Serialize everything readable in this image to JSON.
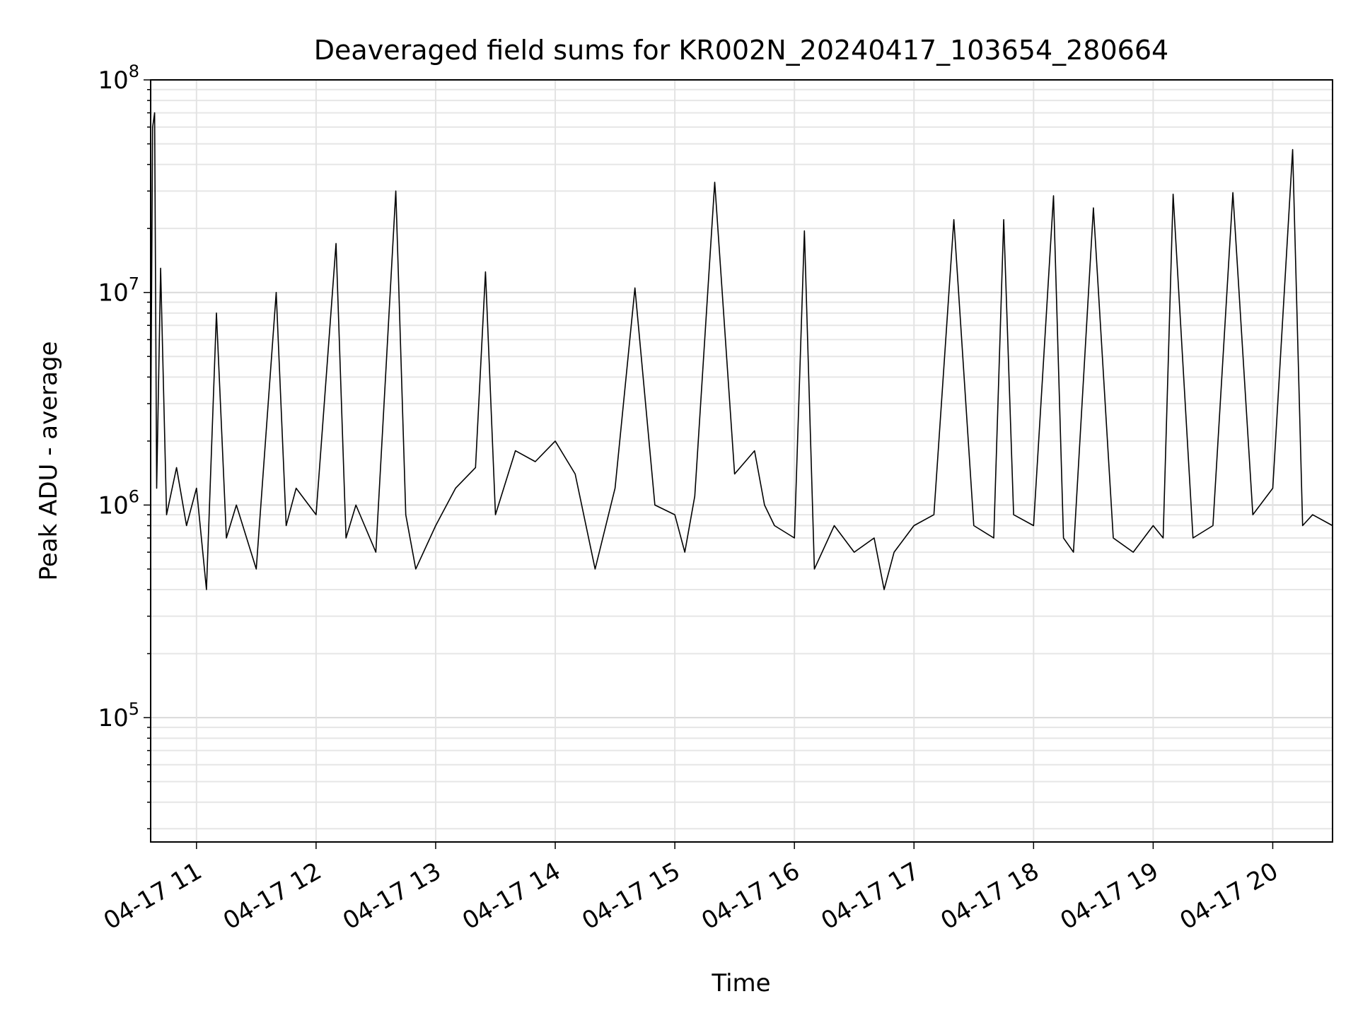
{
  "chart_data": {
    "type": "line",
    "title": "Deaveraged field sums for KR002N_20240417_103654_280664",
    "xlabel": "Time",
    "ylabel": "Peak ADU - average",
    "x_range": [
      "04-17 10:37",
      "04-17 20:30"
    ],
    "y_scale": "log",
    "ylim": [
      26000,
      100000000
    ],
    "grid": true,
    "legend": "none",
    "x_ticks": [
      "04-17 11",
      "04-17 12",
      "04-17 13",
      "04-17 14",
      "04-17 15",
      "04-17 16",
      "04-17 17",
      "04-17 18",
      "04-17 19",
      "04-17 20"
    ],
    "y_ticks": [
      {
        "base": "10",
        "exp": "5",
        "value": 100000
      },
      {
        "base": "10",
        "exp": "6",
        "value": 1000000
      },
      {
        "base": "10",
        "exp": "7",
        "value": 10000000
      },
      {
        "base": "10",
        "exp": "8",
        "value": 100000000
      }
    ],
    "line_color": "#000000",
    "series": [
      {
        "x": [
          "10:37",
          "10:38",
          "10:39",
          "10:40",
          "10:42",
          "10:45",
          "10:50",
          "10:55",
          "11:00",
          "11:05",
          "11:10",
          "11:15",
          "11:20",
          "11:30",
          "11:40",
          "11:45",
          "11:50",
          "12:00",
          "12:10",
          "12:15",
          "12:20",
          "12:30",
          "12:40",
          "12:45",
          "12:50",
          "13:00",
          "13:10",
          "13:20",
          "13:25",
          "13:30",
          "13:40",
          "13:50",
          "14:00",
          "14:10",
          "14:20",
          "14:30",
          "14:40",
          "14:50",
          "15:00",
          "15:05",
          "15:10",
          "15:20",
          "15:30",
          "15:40",
          "15:45",
          "15:50",
          "16:00",
          "16:05",
          "16:10",
          "16:20",
          "16:30",
          "16:40",
          "16:45",
          "16:50",
          "17:00",
          "17:10",
          "17:20",
          "17:30",
          "17:40",
          "17:45",
          "17:50",
          "18:00",
          "18:10",
          "18:15",
          "18:20",
          "18:30",
          "18:40",
          "18:50",
          "19:00",
          "19:05",
          "19:10",
          "19:20",
          "19:30",
          "19:40",
          "19:50",
          "20:00",
          "20:10",
          "20:15",
          "20:20",
          "20:30"
        ],
        "y": [
          2000000,
          60000000,
          70000000,
          1200000,
          13000000,
          900000,
          1500000,
          800000,
          1200000,
          400000,
          8000000,
          700000,
          1000000,
          500000,
          10000000,
          800000,
          1200000,
          900000,
          17000000,
          700000,
          1000000,
          600000,
          30000000,
          900000,
          500000,
          800000,
          1200000,
          1500000,
          12500000,
          900000,
          1800000,
          1600000,
          2000000,
          1400000,
          500000,
          1200000,
          10500000,
          1000000,
          900000,
          600000,
          1100000,
          33000000,
          1400000,
          1800000,
          1000000,
          800000,
          700000,
          19500000,
          500000,
          800000,
          600000,
          700000,
          400000,
          600000,
          800000,
          900000,
          22000000,
          800000,
          700000,
          22000000,
          900000,
          800000,
          28500000,
          700000,
          600000,
          25000000,
          700000,
          600000,
          800000,
          700000,
          29000000,
          700000,
          800000,
          29500000,
          900000,
          1200000,
          47000000,
          800000,
          900000,
          800000
        ]
      }
    ]
  }
}
